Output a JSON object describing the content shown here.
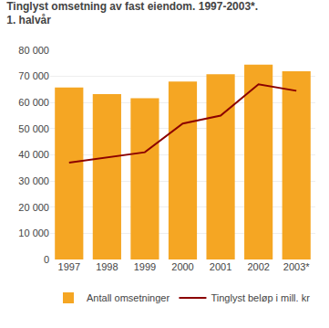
{
  "chart_data": {
    "type": "bar",
    "title": "Tinglyst omsetning av fast eiendom. 1997-2003*.",
    "subtitle": "1. halvår",
    "categories": [
      "1997",
      "1998",
      "1999",
      "2000",
      "2001",
      "2002",
      "2003*"
    ],
    "series": [
      {
        "name": "Antall omsetninger",
        "type": "bar",
        "color": "#F5A623",
        "values": [
          65800,
          63200,
          61700,
          68000,
          70800,
          74500,
          72000
        ]
      },
      {
        "name": "Tinglyst beløp i mill. kr",
        "type": "line",
        "color": "#8B0000",
        "values": [
          37000,
          39000,
          41000,
          52000,
          55000,
          67000,
          64500
        ]
      }
    ],
    "ylim": [
      0,
      80000
    ],
    "yticks": [
      0,
      {
        "value": 10000,
        "label": "10 000"
      },
      {
        "value": 20000,
        "label": "20 000"
      },
      {
        "value": 30000,
        "label": "30 000"
      },
      {
        "value": 40000,
        "label": "40 000"
      },
      {
        "value": 50000,
        "label": "50 000"
      },
      {
        "value": 60000,
        "label": "60 000"
      },
      {
        "value": 70000,
        "label": "70 000"
      },
      {
        "value": 80000,
        "label": "80 000"
      }
    ],
    "grid": true,
    "legend": "bottom"
  }
}
